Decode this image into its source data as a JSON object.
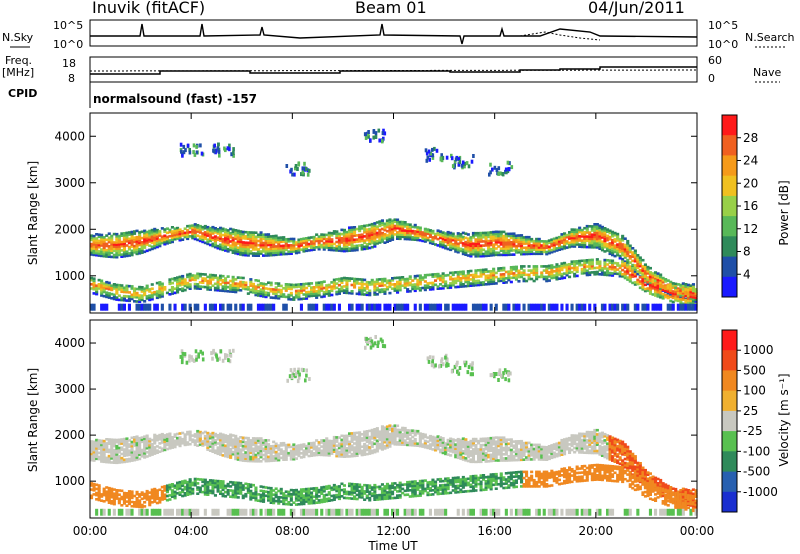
{
  "header": {
    "station": "Inuvik (fitACF)",
    "beam": "Beam 01",
    "date": "04/Jun/2011"
  },
  "status_panel": {
    "nsky_label": "N.Sky",
    "nsky_ticks": [
      "10^5",
      "10^0"
    ],
    "nsearch_label": "N.Search",
    "freq_label_line1": "Freq.",
    "freq_label_line2": "[MHz]",
    "freq_ticks": [
      "18",
      "8"
    ],
    "nave_ticks": [
      "60",
      "0"
    ],
    "nave_label": "Nave",
    "cpid_label": "CPID",
    "cpid_value": "normalsound (fast) -157"
  },
  "colors": {
    "power_scale": [
      "#1a1aff",
      "#1f4fa8",
      "#2f8a5a",
      "#58b858",
      "#98d048",
      "#f0c020",
      "#f59a1a",
      "#f06020",
      "#ff1a1a"
    ],
    "velocity_scale": [
      "#1a2fd0",
      "#2860b0",
      "#2f8a5a",
      "#58c050",
      "#c8c8c0",
      "#f0b030",
      "#f08820",
      "#f04a1a",
      "#ff1a1a"
    ],
    "ground_scatter": "#c4c4bc"
  },
  "chart_data": [
    {
      "type": "heatmap",
      "panel": "power",
      "ylabel": "Slant Range [km]",
      "x_ticks": [
        "00:00",
        "04:00",
        "08:00",
        "12:00",
        "16:00",
        "20:00",
        "00:00"
      ],
      "y_ticks": [
        "1000",
        "2000",
        "3000",
        "4000"
      ],
      "ylim": [
        200,
        4500
      ],
      "xlim": [
        0,
        24
      ],
      "colorbar": {
        "label": "Power [dB]",
        "ticks": [
          "4",
          "8",
          "12",
          "16",
          "20",
          "24",
          "28"
        ],
        "range": [
          0,
          32
        ]
      },
      "bands": [
        {
          "name": "main",
          "points": [
            [
              0,
              1650
            ],
            [
              1,
              1650
            ],
            [
              2,
              1720
            ],
            [
              3,
              1850
            ],
            [
              4,
              1950
            ],
            [
              5,
              1800
            ],
            [
              6,
              1700
            ],
            [
              7,
              1650
            ],
            [
              8,
              1620
            ],
            [
              9,
              1720
            ],
            [
              10,
              1750
            ],
            [
              11,
              1850
            ],
            [
              12,
              2000
            ],
            [
              13,
              1900
            ],
            [
              14,
              1750
            ],
            [
              15,
              1650
            ],
            [
              16,
              1700
            ],
            [
              17,
              1650
            ],
            [
              18,
              1600
            ],
            [
              19,
              1800
            ],
            [
              20,
              1850
            ],
            [
              21,
              1600
            ],
            [
              22,
              1000
            ],
            [
              23,
              700
            ],
            [
              24,
              600
            ]
          ]
        },
        {
          "name": "near",
          "points": [
            [
              0,
              800
            ],
            [
              1,
              650
            ],
            [
              2,
              600
            ],
            [
              3,
              750
            ],
            [
              4,
              900
            ],
            [
              5,
              850
            ],
            [
              6,
              800
            ],
            [
              7,
              700
            ],
            [
              8,
              650
            ],
            [
              9,
              700
            ],
            [
              10,
              800
            ],
            [
              11,
              750
            ],
            [
              12,
              800
            ],
            [
              13,
              850
            ],
            [
              14,
              900
            ],
            [
              15,
              950
            ],
            [
              16,
              1000
            ],
            [
              17,
              1050
            ],
            [
              18,
              1050
            ],
            [
              19,
              1150
            ],
            [
              20,
              1200
            ],
            [
              21,
              1150
            ],
            [
              22,
              800
            ],
            [
              23,
              600
            ],
            [
              24,
              500
            ]
          ]
        },
        {
          "name": "patches",
          "points": [
            [
              3.8,
              3700
            ],
            [
              5,
              3700
            ],
            [
              8,
              3300
            ],
            [
              11,
              4000
            ],
            [
              13.5,
              3600
            ],
            [
              14.5,
              3450
            ],
            [
              16,
              3300
            ]
          ]
        }
      ]
    },
    {
      "type": "heatmap",
      "panel": "velocity",
      "xlabel": "Time UT",
      "ylabel": "Slant Range [km]",
      "x_ticks": [
        "00:00",
        "04:00",
        "08:00",
        "12:00",
        "16:00",
        "20:00",
        "00:00"
      ],
      "y_ticks": [
        "1000",
        "2000",
        "3000",
        "4000"
      ],
      "ylim": [
        200,
        4500
      ],
      "xlim": [
        0,
        24
      ],
      "colorbar": {
        "label": "Velocity [m s⁻¹]",
        "ticks": [
          "1000",
          "500",
          "100",
          "25",
          "-25",
          "-100",
          "-500",
          "-1000"
        ]
      }
    }
  ]
}
